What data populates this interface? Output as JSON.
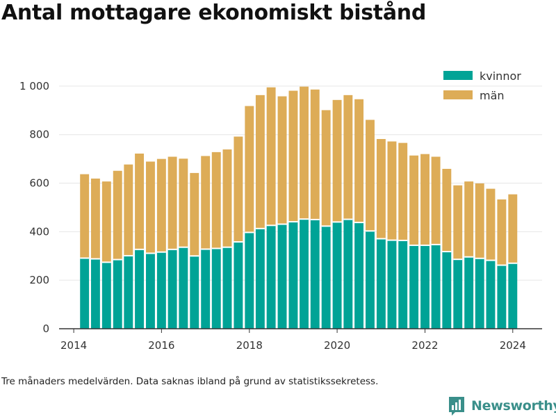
{
  "title": "Antal mottagare ekonomiskt bistånd",
  "footnote": "Tre månaders medelvärden. Data saknas ibland på grund av statistikssekretess.",
  "brand": {
    "name": "Newsworthy",
    "icon": "bar-chart-logo-icon"
  },
  "colors": {
    "kvinnor": "#00a396",
    "man": "#ddac57",
    "grid": "#e6e6e6",
    "axis": "#333333"
  },
  "chart_data": {
    "type": "bar",
    "stacked": true,
    "x_axis": {
      "type": "date",
      "range": [
        "2013-09-01",
        "2024-09-01"
      ],
      "ticks": [
        "2014",
        "2016",
        "2018",
        "2020",
        "2022",
        "2024"
      ]
    },
    "y_axis": {
      "range": [
        0,
        1080
      ],
      "ticks": [
        0,
        200,
        400,
        600,
        800,
        1000
      ],
      "tick_labels": [
        "0",
        "200",
        "400",
        "600",
        "800",
        "1 000"
      ]
    },
    "grid": "horizontal",
    "legend_position": "top-right",
    "x": [
      "2014-04",
      "2014-07",
      "2014-10",
      "2015-01",
      "2015-04",
      "2015-07",
      "2015-10",
      "2016-01",
      "2016-04",
      "2016-07",
      "2016-10",
      "2017-01",
      "2017-04",
      "2017-07",
      "2017-10",
      "2018-01",
      "2018-04",
      "2018-07",
      "2018-10",
      "2019-01",
      "2019-04",
      "2019-07",
      "2019-10",
      "2020-01",
      "2020-04",
      "2020-07",
      "2020-10",
      "2021-01",
      "2021-04",
      "2021-07",
      "2021-10",
      "2022-01",
      "2022-04",
      "2022-07",
      "2022-10",
      "2023-01",
      "2023-04",
      "2023-07",
      "2023-10",
      "2024-01"
    ],
    "series": [
      {
        "name": "kvinnor",
        "values": [
          291,
          288,
          274,
          285,
          301,
          327,
          311,
          316,
          327,
          336,
          300,
          328,
          331,
          336,
          358,
          397,
          413,
          426,
          431,
          441,
          452,
          450,
          423,
          440,
          451,
          438,
          403,
          371,
          365,
          364,
          344,
          344,
          347,
          318,
          286,
          296,
          290,
          282,
          262,
          270
        ]
      },
      {
        "name": "män",
        "values": [
          346,
          331,
          333,
          366,
          376,
          395,
          378,
          384,
          382,
          365,
          342,
          384,
          397,
          403,
          434,
          521,
          550,
          569,
          527,
          540,
          546,
          536,
          478,
          503,
          512,
          508,
          458,
          411,
          407,
          402,
          370,
          376,
          362,
          341,
          305,
          311,
          309,
          295,
          271,
          284
        ]
      }
    ]
  }
}
